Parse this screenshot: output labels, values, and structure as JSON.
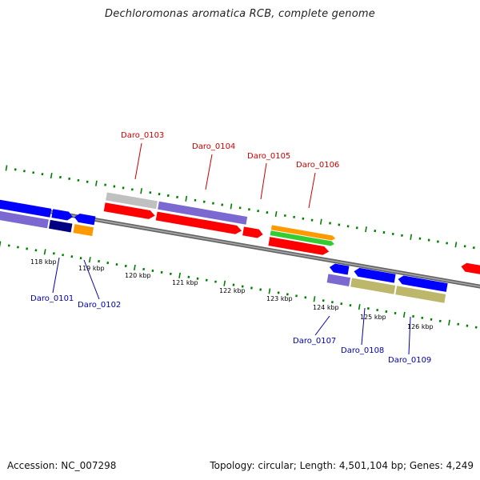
{
  "title": "Dechloromonas aromatica RCB, complete genome",
  "footer": {
    "accession": "Accession: NC_007298",
    "topology": "Topology: circular; Length: 4,501,104 bp; Genes: 4,249"
  },
  "colors": {
    "blue": "#0000ff",
    "red": "#ff0000",
    "purple": "#7b68d0",
    "navy": "#000080",
    "orange": "#ff9900",
    "green": "#33cc33",
    "khaki": "#bdb76b",
    "gray": "#c0c0c0",
    "tick_green": "#008000",
    "label_red": "#cc0000",
    "label_blue": "#0000aa"
  },
  "scale": {
    "labels": [
      "118 kbp",
      "119 kbp",
      "120 kbp",
      "121 kbp",
      "122 kbp",
      "123 kbp",
      "124 kbp",
      "125 kbp",
      "126 kbp"
    ]
  },
  "genes_top": [
    "Daro_0103",
    "Daro_0104",
    "Daro_0105",
    "Daro_0106"
  ],
  "genes_bottom": [
    "Daro_0101",
    "Daro_0102",
    "Daro_0107",
    "Daro_0108",
    "Daro_0109"
  ]
}
